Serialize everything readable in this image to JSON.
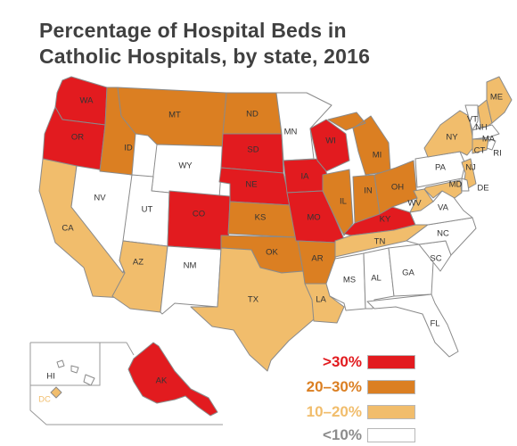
{
  "title": {
    "line1": "Percentage of Hospital Beds in",
    "line2": "Catholic Hospitals, by state, 2016"
  },
  "colors": {
    "gt30": "#e21b1f",
    "r20_30": "#db7f22",
    "r10_20": "#f1bd6c",
    "lt10": "#ffffff",
    "border": "#8a8a8a"
  },
  "legend": [
    {
      "label": ">30%",
      "color": "#e21b1f",
      "text_color": "#e21b1f"
    },
    {
      "label": "20–30%",
      "color": "#db7f22",
      "text_color": "#db7f22"
    },
    {
      "label": "10–20%",
      "color": "#f1bd6c",
      "text_color": "#f1bd6c"
    },
    {
      "label": "<10%",
      "color": "#ffffff",
      "text_color": "#8c8c8c"
    }
  ],
  "states": {
    "WA": ">30%",
    "OR": ">30%",
    "CA": "10-20%",
    "NV": "<10%",
    "ID": "20-30%",
    "MT": "20-30%",
    "WY": "<10%",
    "UT": "<10%",
    "CO": ">30%",
    "AZ": "10-20%",
    "NM": "<10%",
    "ND": "20-30%",
    "SD": ">30%",
    "NE": ">30%",
    "KS": "20-30%",
    "OK": "20-30%",
    "TX": "10-20%",
    "MN": "<10%",
    "IA": ">30%",
    "MO": ">30%",
    "AR": "20-30%",
    "LA": "10-20%",
    "WI": ">30%",
    "IL": "20-30%",
    "MI": "20-30%",
    "IN": "20-30%",
    "OH": "20-30%",
    "KY": ">30%",
    "TN": "10-20%",
    "MS": "<10%",
    "AL": "<10%",
    "GA": "<10%",
    "FL": "<10%",
    "SC": "<10%",
    "NC": "<10%",
    "VA": "<10%",
    "WV": "10-20%",
    "PA": "<10%",
    "NY": "10-20%",
    "VT": "<10%",
    "NH": "10-20%",
    "ME": "10-20%",
    "MA": "<10%",
    "RI": "<10%",
    "CT": "10-20%",
    "NJ": "10-20%",
    "DE": "<10%",
    "MD": "10-20%",
    "DC": "10-20%",
    "AK": ">30%",
    "HI": "<10%"
  },
  "labels": {
    "WA": "WA",
    "OR": "OR",
    "CA": "CA",
    "NV": "NV",
    "ID": "ID",
    "MT": "MT",
    "WY": "WY",
    "UT": "UT",
    "CO": "CO",
    "AZ": "AZ",
    "NM": "NM",
    "ND": "ND",
    "SD": "SD",
    "NE": "NE",
    "KS": "KS",
    "OK": "OK",
    "TX": "TX",
    "MN": "MN",
    "IA": "IA",
    "MO": "MO",
    "AR": "AR",
    "LA": "LA",
    "WI": "WI",
    "IL": "IL",
    "MI": "MI",
    "IN": "IN",
    "OH": "OH",
    "KY": "KY",
    "TN": "TN",
    "MS": "MS",
    "AL": "AL",
    "GA": "GA",
    "FL": "FL",
    "SC": "SC",
    "NC": "NC",
    "VA": "VA",
    "WV": "WV",
    "PA": "PA",
    "NY": "NY",
    "VT": "VT",
    "NH": "NH",
    "ME": "ME",
    "MA": "MA",
    "RI": "RI",
    "CT": "CT",
    "NJ": "NJ",
    "DE": "DE",
    "MD": "MD",
    "DC": "DC",
    "AK": "AK",
    "HI": "HI"
  }
}
